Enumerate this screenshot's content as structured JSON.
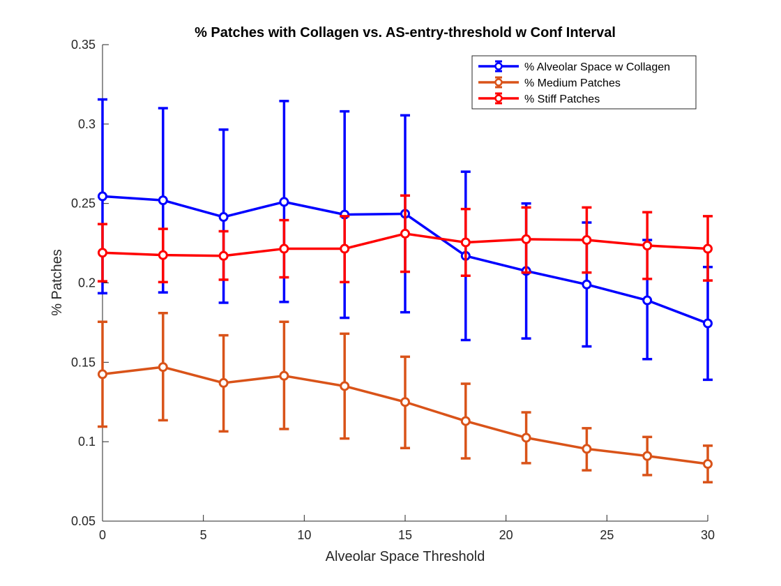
{
  "chart_data": {
    "type": "line",
    "title": "% Patches with Collagen vs. AS-entry-threshold w Conf Interval",
    "xlabel": "Alveolar Space Threshold",
    "ylabel": "% Patches",
    "xlim": [
      0,
      30
    ],
    "ylim": [
      0.05,
      0.35
    ],
    "xticks": [
      "0",
      "5",
      "10",
      "15",
      "20",
      "25",
      "30"
    ],
    "yticks": [
      "0.05",
      "0.1",
      "0.15",
      "0.2",
      "0.25",
      "0.3",
      "0.35"
    ],
    "grid": false,
    "legend_position": "top-right",
    "error_bars": true,
    "x": [
      0,
      3,
      6,
      9,
      12,
      15,
      18,
      21,
      24,
      27,
      30
    ],
    "series": [
      {
        "name": "% Alveolar Space w Collagen",
        "color": "#0000ff",
        "values": [
          0.2545,
          0.252,
          0.2415,
          0.251,
          0.243,
          0.2435,
          0.217,
          0.2075,
          0.199,
          0.189,
          0.1745
        ],
        "lower": [
          0.1935,
          0.194,
          0.1875,
          0.188,
          0.178,
          0.1815,
          0.164,
          0.165,
          0.16,
          0.152,
          0.139
        ],
        "upper": [
          0.3155,
          0.31,
          0.2965,
          0.3145,
          0.308,
          0.3055,
          0.27,
          0.25,
          0.238,
          0.227,
          0.21
        ]
      },
      {
        "name": "% Medium Patches",
        "color": "#d95319",
        "values": [
          0.1425,
          0.147,
          0.137,
          0.1415,
          0.135,
          0.125,
          0.113,
          0.1025,
          0.0955,
          0.091,
          0.086
        ],
        "lower": [
          0.1095,
          0.1135,
          0.1065,
          0.108,
          0.102,
          0.096,
          0.0895,
          0.0865,
          0.082,
          0.079,
          0.0745
        ],
        "upper": [
          0.1755,
          0.181,
          0.167,
          0.1755,
          0.168,
          0.1535,
          0.1365,
          0.1185,
          0.1085,
          0.103,
          0.0975
        ]
      },
      {
        "name": "% Stiff Patches",
        "color": "#ff0000",
        "values": [
          0.219,
          0.2175,
          0.217,
          0.2215,
          0.2215,
          0.231,
          0.2255,
          0.2275,
          0.227,
          0.2235,
          0.2215
        ],
        "lower": [
          0.201,
          0.2005,
          0.202,
          0.2035,
          0.2005,
          0.207,
          0.2045,
          0.2065,
          0.2065,
          0.2025,
          0.2015
        ],
        "upper": [
          0.237,
          0.234,
          0.2325,
          0.2395,
          0.242,
          0.255,
          0.2465,
          0.2475,
          0.2475,
          0.2445,
          0.242
        ]
      }
    ]
  }
}
